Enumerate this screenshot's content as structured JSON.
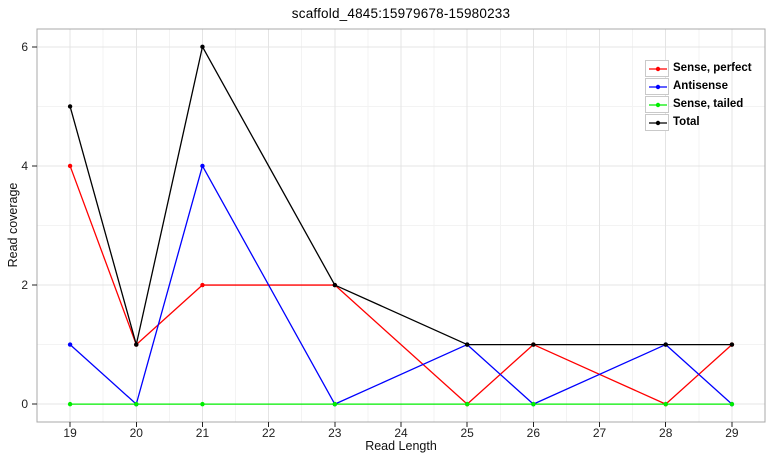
{
  "chart_data": {
    "type": "line",
    "title": "scaffold_4845:15979678-15980233",
    "xlabel": "Read Length",
    "ylabel": "Read coverage",
    "x": [
      19,
      20,
      21,
      23,
      25,
      26,
      28,
      29
    ],
    "series": [
      {
        "name": "Sense, perfect",
        "color": "#ff0000",
        "values": [
          4,
          1,
          2,
          2,
          0,
          1,
          0,
          1
        ]
      },
      {
        "name": "Antisense",
        "color": "#0000ff",
        "values": [
          1,
          0,
          4,
          0,
          1,
          0,
          1,
          0
        ]
      },
      {
        "name": "Sense, tailed",
        "color": "#00ee00",
        "values": [
          0,
          0,
          0,
          0,
          0,
          0,
          0,
          0
        ]
      },
      {
        "name": "Total",
        "color": "#000000",
        "values": [
          5,
          1,
          6,
          2,
          1,
          1,
          1,
          1
        ]
      }
    ],
    "x_ticks": [
      19,
      20,
      21,
      22,
      23,
      24,
      25,
      26,
      27,
      28,
      29
    ],
    "y_ticks": [
      0,
      2,
      4,
      6
    ],
    "xlim": [
      18.5,
      29.5
    ],
    "ylim": [
      -0.3,
      6.3
    ],
    "grid": true,
    "legend_position": "top-right",
    "styles": {
      "grid_major": "#e4e4e4",
      "grid_minor": "#f3f3f3",
      "panel_border": "#a8a8a8",
      "tick_color": "#222222",
      "tick_label_color": "#1f1f1f"
    }
  }
}
